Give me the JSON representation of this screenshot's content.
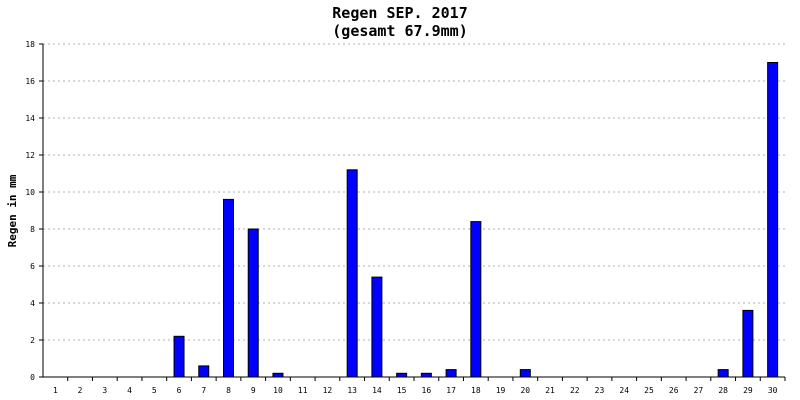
{
  "chart_data": {
    "type": "bar",
    "title": "Regen SEP. 2017",
    "subtitle": "(gesamt 67.9mm)",
    "xlabel": "",
    "ylabel": "Regen in mm",
    "ylim": [
      0,
      18
    ],
    "yticks": [
      0,
      2,
      4,
      6,
      8,
      10,
      12,
      14,
      16,
      18
    ],
    "grid": true,
    "bar_color": "#0000ff",
    "categories": [
      "1",
      "2",
      "3",
      "4",
      "5",
      "6",
      "7",
      "8",
      "9",
      "10",
      "11",
      "12",
      "13",
      "14",
      "15",
      "16",
      "17",
      "18",
      "19",
      "20",
      "21",
      "22",
      "23",
      "24",
      "25",
      "26",
      "27",
      "28",
      "29",
      "30"
    ],
    "values": [
      0,
      0,
      0,
      0,
      0,
      2.2,
      0.6,
      9.6,
      8.0,
      0.2,
      0,
      0,
      11.2,
      5.4,
      0.2,
      0.2,
      0.4,
      8.4,
      0,
      0.4,
      0,
      0,
      0,
      0,
      0,
      0,
      0,
      0.4,
      3.6,
      17.0
    ]
  }
}
